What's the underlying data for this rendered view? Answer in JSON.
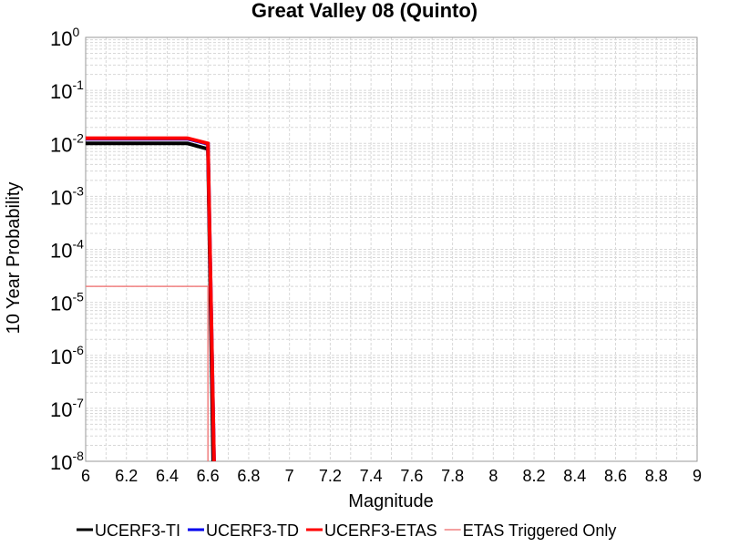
{
  "chart_data": {
    "type": "line",
    "title": "Great Valley 08 (Quinto)",
    "xlabel": "Magnitude",
    "ylabel": "10 Year Probability",
    "xlim": [
      6,
      9
    ],
    "ylim": [
      1e-08,
      1
    ],
    "yscale": "log",
    "grid": true,
    "legend": "bottom",
    "x_ticks": [
      "6",
      "6.2",
      "6.4",
      "6.6",
      "6.8",
      "7",
      "7.2",
      "7.4",
      "7.6",
      "7.8",
      "8",
      "8.2",
      "8.4",
      "8.6",
      "8.8",
      "9"
    ],
    "y_ticks": [
      {
        "base": "10",
        "exp": "0",
        "value": 1
      },
      {
        "base": "10",
        "exp": "-1",
        "value": 0.1
      },
      {
        "base": "10",
        "exp": "-2",
        "value": 0.01
      },
      {
        "base": "10",
        "exp": "-3",
        "value": 0.001
      },
      {
        "base": "10",
        "exp": "-4",
        "value": 0.0001
      },
      {
        "base": "10",
        "exp": "-5",
        "value": 1e-05
      },
      {
        "base": "10",
        "exp": "-6",
        "value": 1e-06
      },
      {
        "base": "10",
        "exp": "-7",
        "value": 1e-07
      },
      {
        "base": "10",
        "exp": "-8",
        "value": 1e-08
      }
    ],
    "series": [
      {
        "name": "UCERF3-TI",
        "color": "#000000",
        "width": 4,
        "x": [
          6.0,
          6.5,
          6.6,
          6.63
        ],
        "y": [
          0.01,
          0.01,
          0.0078,
          1e-09
        ]
      },
      {
        "name": "UCERF3-TD",
        "color": "#0000ee",
        "width": 4,
        "x": [
          6.0,
          6.5,
          6.6,
          6.635
        ],
        "y": [
          0.0122,
          0.0122,
          0.0098,
          1e-09
        ]
      },
      {
        "name": "UCERF3-ETAS",
        "color": "#ff0000",
        "width": 4,
        "x": [
          6.0,
          6.5,
          6.6,
          6.635
        ],
        "y": [
          0.0125,
          0.0125,
          0.01,
          1e-09
        ]
      },
      {
        "name": "ETAS Triggered Only",
        "color": "#f08080",
        "width": 1.5,
        "x": [
          6.0,
          6.6,
          6.6
        ],
        "y": [
          2e-05,
          2e-05,
          1e-09
        ]
      }
    ]
  }
}
